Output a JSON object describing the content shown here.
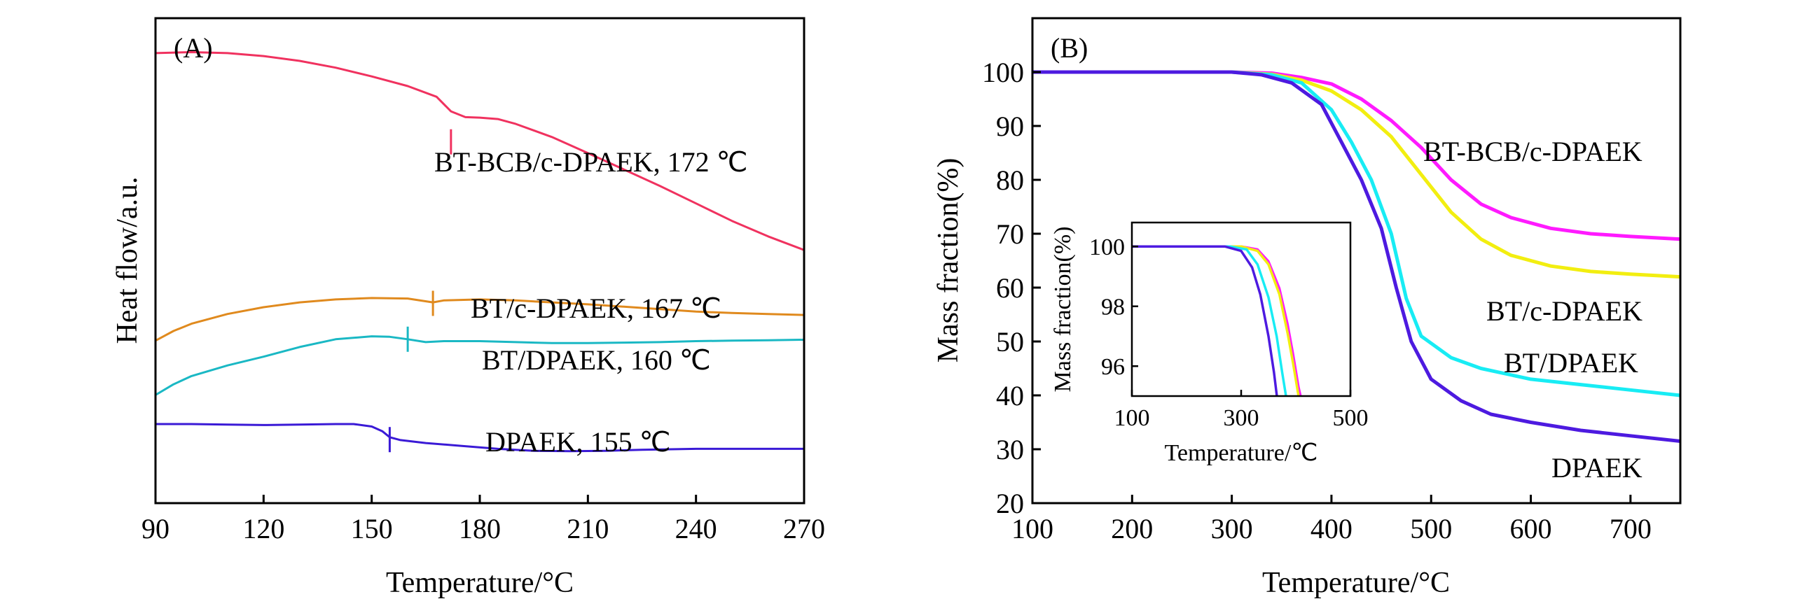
{
  "chart_data": [
    {
      "type": "line",
      "panel_label": "(A)",
      "title": "",
      "xlabel": "Temperature/°C",
      "ylabel": "Heat flow/a.u.",
      "xlim": [
        90,
        270
      ],
      "ylim": [
        0,
        1
      ],
      "xticks": [
        90,
        120,
        150,
        180,
        210,
        240,
        270
      ],
      "yticks": [],
      "grid": false,
      "series": [
        {
          "name": "BT-BCB/c-DPAEK",
          "label": "BT-BCB/c-DPAEK, 172 ℃",
          "tg": 172,
          "tg_mark": [
            172,
            0.745
          ],
          "color": "#f0325f",
          "points": [
            [
              90,
              0.928
            ],
            [
              100,
              0.93
            ],
            [
              110,
              0.928
            ],
            [
              120,
              0.922
            ],
            [
              130,
              0.912
            ],
            [
              140,
              0.898
            ],
            [
              150,
              0.88
            ],
            [
              160,
              0.86
            ],
            [
              168,
              0.838
            ],
            [
              172,
              0.808
            ],
            [
              176,
              0.796
            ],
            [
              180,
              0.795
            ],
            [
              185,
              0.792
            ],
            [
              190,
              0.782
            ],
            [
              200,
              0.755
            ],
            [
              210,
              0.722
            ],
            [
              220,
              0.688
            ],
            [
              230,
              0.654
            ],
            [
              240,
              0.618
            ],
            [
              250,
              0.582
            ],
            [
              260,
              0.55
            ],
            [
              270,
              0.522
            ]
          ]
        },
        {
          "name": "BT/c-DPAEK",
          "label": "BT/c-DPAEK, 167 ℃",
          "tg": 167,
          "tg_mark": [
            167,
            0.412
          ],
          "color": "#e08a1e",
          "points": [
            [
              90,
              0.335
            ],
            [
              95,
              0.355
            ],
            [
              100,
              0.37
            ],
            [
              110,
              0.39
            ],
            [
              120,
              0.404
            ],
            [
              130,
              0.414
            ],
            [
              140,
              0.42
            ],
            [
              150,
              0.423
            ],
            [
              160,
              0.422
            ],
            [
              167,
              0.414
            ],
            [
              170,
              0.418
            ],
            [
              180,
              0.42
            ],
            [
              190,
              0.418
            ],
            [
              200,
              0.414
            ],
            [
              210,
              0.41
            ],
            [
              220,
              0.405
            ],
            [
              230,
              0.4
            ],
            [
              240,
              0.395
            ],
            [
              250,
              0.392
            ],
            [
              260,
              0.39
            ],
            [
              270,
              0.388
            ]
          ]
        },
        {
          "name": "BT/DPAEK",
          "label": "BT/DPAEK, 160 ℃",
          "tg": 160,
          "tg_mark": [
            160,
            0.338
          ],
          "color": "#1ab8c4",
          "points": [
            [
              90,
              0.223
            ],
            [
              95,
              0.245
            ],
            [
              100,
              0.262
            ],
            [
              110,
              0.284
            ],
            [
              120,
              0.302
            ],
            [
              130,
              0.322
            ],
            [
              140,
              0.338
            ],
            [
              150,
              0.344
            ],
            [
              155,
              0.343
            ],
            [
              160,
              0.338
            ],
            [
              165,
              0.332
            ],
            [
              170,
              0.334
            ],
            [
              180,
              0.334
            ],
            [
              190,
              0.332
            ],
            [
              200,
              0.33
            ],
            [
              210,
              0.33
            ],
            [
              220,
              0.331
            ],
            [
              230,
              0.332
            ],
            [
              240,
              0.334
            ],
            [
              250,
              0.335
            ],
            [
              260,
              0.336
            ],
            [
              270,
              0.337
            ]
          ]
        },
        {
          "name": "DPAEK",
          "label": "DPAEK, 155 ℃",
          "tg": 155,
          "tg_mark": [
            155,
            0.131
          ],
          "color": "#3a1ad6",
          "points": [
            [
              90,
              0.163
            ],
            [
              100,
              0.163
            ],
            [
              110,
              0.162
            ],
            [
              120,
              0.161
            ],
            [
              130,
              0.162
            ],
            [
              140,
              0.163
            ],
            [
              145,
              0.163
            ],
            [
              150,
              0.158
            ],
            [
              153,
              0.148
            ],
            [
              155,
              0.136
            ],
            [
              158,
              0.13
            ],
            [
              165,
              0.124
            ],
            [
              175,
              0.118
            ],
            [
              185,
              0.112
            ],
            [
              195,
              0.108
            ],
            [
              205,
              0.107
            ],
            [
              215,
              0.108
            ],
            [
              225,
              0.11
            ],
            [
              240,
              0.112
            ],
            [
              255,
              0.112
            ],
            [
              270,
              0.112
            ]
          ]
        }
      ]
    },
    {
      "type": "line",
      "panel_label": "(B)",
      "title": "",
      "xlabel": "Temperature/°C",
      "ylabel": "Mass fraction(%)",
      "xlim": [
        100,
        750
      ],
      "ylim": [
        20,
        110
      ],
      "xticks": [
        100,
        200,
        300,
        400,
        500,
        600,
        700
      ],
      "yticks": [
        20,
        30,
        40,
        50,
        60,
        70,
        80,
        90,
        100
      ],
      "grid": false,
      "series": [
        {
          "name": "BT-BCB/c-DPAEK",
          "label": "BT-BCB/c-DPAEK",
          "color": "#ff1aff",
          "points": [
            [
              100,
              100
            ],
            [
              300,
              100
            ],
            [
              340,
              99.8
            ],
            [
              370,
              99.0
            ],
            [
              400,
              97.8
            ],
            [
              430,
              95
            ],
            [
              460,
              91
            ],
            [
              490,
              86
            ],
            [
              520,
              80
            ],
            [
              550,
              75.5
            ],
            [
              580,
              73
            ],
            [
              620,
              71
            ],
            [
              660,
              70
            ],
            [
              700,
              69.5
            ],
            [
              750,
              69
            ]
          ]
        },
        {
          "name": "BT/c-DPAEK",
          "label": "BT/c-DPAEK",
          "color": "#f2ee10",
          "points": [
            [
              100,
              100
            ],
            [
              300,
              100
            ],
            [
              340,
              99.6
            ],
            [
              370,
              98.5
            ],
            [
              400,
              96.5
            ],
            [
              430,
              93
            ],
            [
              460,
              88
            ],
            [
              490,
              81
            ],
            [
              520,
              74
            ],
            [
              550,
              69
            ],
            [
              580,
              66
            ],
            [
              620,
              64
            ],
            [
              660,
              63
            ],
            [
              700,
              62.5
            ],
            [
              750,
              62
            ]
          ]
        },
        {
          "name": "BT/DPAEK",
          "label": "BT/DPAEK",
          "color": "#18ecf4",
          "points": [
            [
              100,
              100
            ],
            [
              300,
              100
            ],
            [
              340,
              99.5
            ],
            [
              370,
              98
            ],
            [
              400,
              93
            ],
            [
              420,
              87
            ],
            [
              440,
              80
            ],
            [
              460,
              70
            ],
            [
              475,
              58
            ],
            [
              490,
              51
            ],
            [
              520,
              47
            ],
            [
              550,
              45
            ],
            [
              600,
              43
            ],
            [
              650,
              42
            ],
            [
              700,
              41
            ],
            [
              750,
              40
            ]
          ]
        },
        {
          "name": "DPAEK",
          "label": "DPAEK",
          "color": "#4d1ae0",
          "points": [
            [
              100,
              100
            ],
            [
              300,
              100
            ],
            [
              330,
              99.5
            ],
            [
              360,
              98
            ],
            [
              390,
              94
            ],
            [
              410,
              87
            ],
            [
              430,
              80
            ],
            [
              450,
              71
            ],
            [
              465,
              60
            ],
            [
              480,
              50
            ],
            [
              500,
              43
            ],
            [
              530,
              39
            ],
            [
              560,
              36.5
            ],
            [
              600,
              35
            ],
            [
              650,
              33.5
            ],
            [
              700,
              32.5
            ],
            [
              750,
              31.5
            ]
          ]
        }
      ],
      "inset": {
        "xlabel": "Temperature/℃",
        "ylabel": "Mass fraction(%)",
        "xlim": [
          100,
          500
        ],
        "ylim": [
          95,
          100.8
        ],
        "xticks": [
          100,
          300,
          500
        ],
        "yticks": [
          96,
          98,
          100
        ],
        "series": [
          {
            "name": "BT-BCB/c-DPAEK",
            "color": "#ff1aff",
            "points": [
              [
                100,
                100
              ],
              [
                300,
                100
              ],
              [
                330,
                99.9
              ],
              [
                350,
                99.5
              ],
              [
                370,
                98.6
              ],
              [
                385,
                97.4
              ],
              [
                395,
                96.4
              ],
              [
                405,
                95.3
              ],
              [
                410,
                94.9
              ]
            ]
          },
          {
            "name": "BT/c-DPAEK",
            "color": "#f2ee10",
            "points": [
              [
                100,
                100
              ],
              [
                300,
                100
              ],
              [
                330,
                99.85
              ],
              [
                350,
                99.4
              ],
              [
                370,
                98.4
              ],
              [
                385,
                97.1
              ],
              [
                395,
                96.1
              ],
              [
                405,
                95
              ]
            ]
          },
          {
            "name": "BT/DPAEK",
            "color": "#18ecf4",
            "points": [
              [
                100,
                100
              ],
              [
                280,
                100
              ],
              [
                310,
                99.9
              ],
              [
                330,
                99.4
              ],
              [
                350,
                98.3
              ],
              [
                365,
                97
              ],
              [
                375,
                95.8
              ],
              [
                383,
                94.9
              ]
            ]
          },
          {
            "name": "DPAEK",
            "color": "#4d1ae0",
            "points": [
              [
                100,
                100
              ],
              [
                270,
                100
              ],
              [
                300,
                99.85
              ],
              [
                320,
                99.3
              ],
              [
                335,
                98.4
              ],
              [
                350,
                97
              ],
              [
                360,
                95.8
              ],
              [
                366,
                94.9
              ]
            ]
          }
        ]
      }
    }
  ]
}
